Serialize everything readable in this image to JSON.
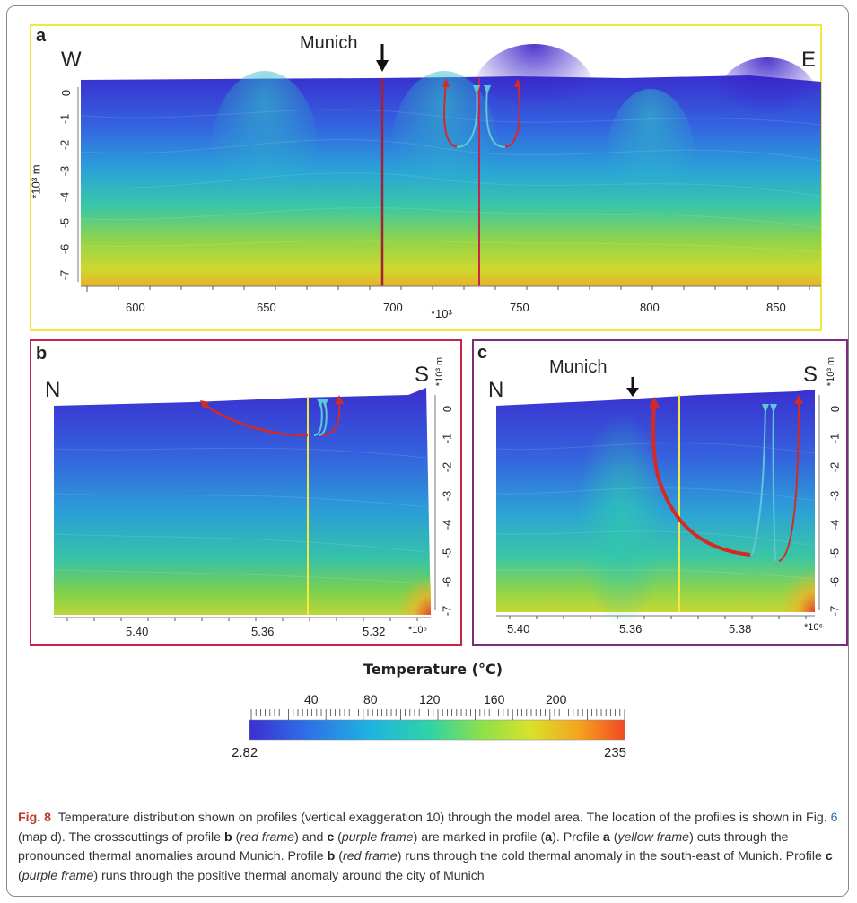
{
  "panel_a": {
    "letter": "a",
    "west": "W",
    "east": "E",
    "city": "Munich",
    "y_axis_label": "*10³ m",
    "y_ticks": [
      "0",
      "-1",
      "-2",
      "-3",
      "-4",
      "-5",
      "-6",
      "-7"
    ],
    "x_ticks": [
      "600",
      "650",
      "700",
      "750",
      "800",
      "850"
    ],
    "x_unit": "*10³",
    "frame_color": "#f2e63c"
  },
  "panel_b": {
    "letter": "b",
    "north": "N",
    "south": "S",
    "y_axis_label": "*10³ m",
    "y_ticks": [
      "0",
      "-1",
      "-2",
      "-3",
      "-4",
      "-5",
      "-6",
      "-7"
    ],
    "x_ticks": [
      "5.40",
      "5.36",
      "5.32"
    ],
    "x_unit": "*10⁶",
    "frame_color": "#c8234a"
  },
  "panel_c": {
    "letter": "c",
    "north": "N",
    "south": "S",
    "city": "Munich",
    "y_axis_label": "*10³ m",
    "y_ticks": [
      "0",
      "-1",
      "-2",
      "-3",
      "-4",
      "-5",
      "-6",
      "-7"
    ],
    "x_ticks": [
      "5.40",
      "5.36",
      "5.38"
    ],
    "x_unit": "*10⁶",
    "frame_color": "#7a2e7a"
  },
  "colorbar": {
    "title": "Temperature (°C)",
    "ticks": [
      "40",
      "80",
      "120",
      "160",
      "200"
    ],
    "min": "2.82",
    "max": "235",
    "colors": [
      "#3b2fd0",
      "#2f6ee6",
      "#1fb3e0",
      "#2ed3a8",
      "#8ee04a",
      "#d9e12a",
      "#f6a21e",
      "#ef4a22"
    ]
  },
  "caption": {
    "fig": "Fig. 8",
    "p1": "Temperature distribution shown on profiles (vertical exaggeration 10) through the model area. The location of the profiles is shown in Fig. ",
    "ref": "6",
    "p2": " (map d). The crosscuttings of profile ",
    "b1": "b",
    "p3": " (",
    "red_frame": "red frame",
    "p4": ") and ",
    "c1": "c",
    "p5": " (",
    "purple_frame": "purple frame",
    "p6": ") are marked in profile (",
    "a1": "a",
    "p7": "). Profile ",
    "a2": "a",
    "p8": " (",
    "yellow_frame": "yellow frame",
    "p9": ") cuts through the pronounced thermal anomalies around Munich. Profile ",
    "b2": "b",
    "p10": " (",
    "red_frame2": "red frame",
    "p11": ") runs through the cold thermal anomaly in the south-east of Munich. Profile ",
    "c2": "c",
    "p12": " (",
    "purple_frame2": "purple frame",
    "p13": ") runs through the positive thermal anomaly around the city of Munich"
  }
}
